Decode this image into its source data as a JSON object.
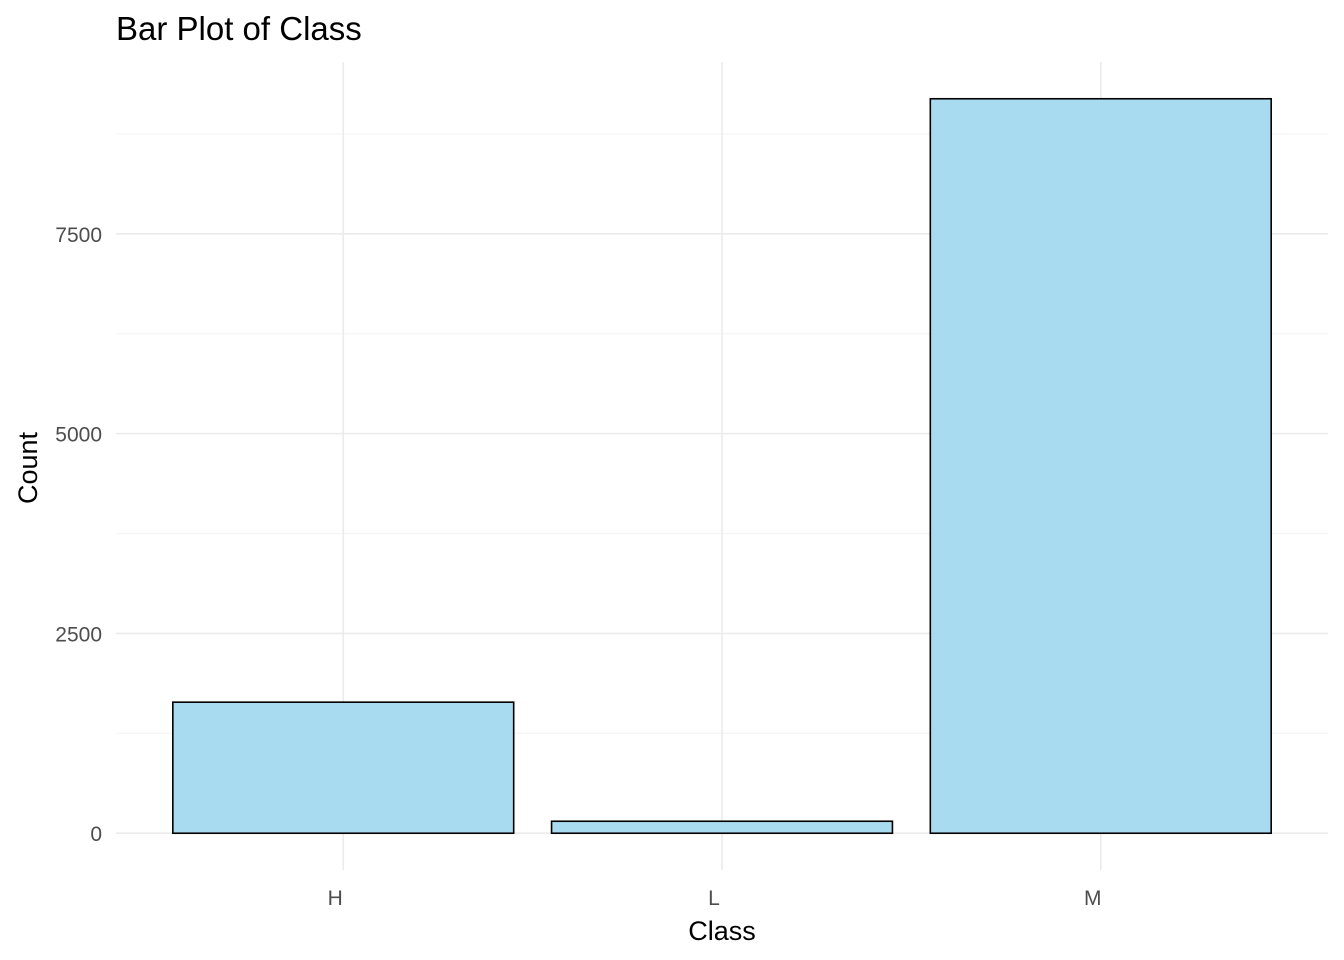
{
  "chart_data": {
    "type": "bar",
    "title": "Bar Plot of Class",
    "xlabel": "Class",
    "ylabel": "Count",
    "categories": [
      "H",
      "L",
      "M"
    ],
    "values": [
      1640,
      150,
      9190
    ],
    "ylim": [
      -460,
      9650
    ],
    "yticks": [
      0,
      2500,
      5000,
      7500
    ],
    "ytick_labels": [
      "0",
      "2500",
      "5000",
      "7500"
    ],
    "y_minor_ticks": [
      1250,
      3750,
      6250,
      8750
    ],
    "grid": true,
    "legend": "none",
    "colors": {
      "bar_fill": "#a8dbef",
      "bar_stroke": "#000000",
      "grid_major": "#ebebeb",
      "grid_minor": "#f4f4f4",
      "tick_text": "#4d4d4d",
      "title_text": "#000000"
    }
  }
}
